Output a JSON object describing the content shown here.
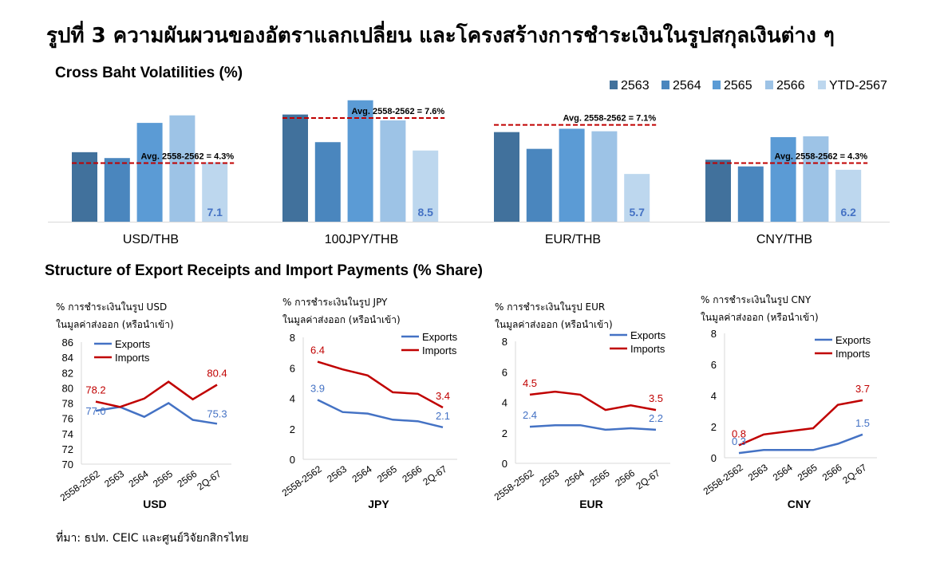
{
  "page_title": "รูปที่ 3 ความผันผวนของอัตราแลกเปลี่ยน และโครงสร้างการชำระเงินในรูปสกุลเงินต่าง ๆ",
  "volatility_title": "Cross Baht Volatilities (%)",
  "share_title": "Structure of Export Receipts and Import Payments (% Share)",
  "source": "ที่มา: ธปท. CEIC และศูนย์วิจัยกสิกรไทย",
  "colors": {
    "s2563": "#41719C",
    "s2564": "#4A86BE",
    "s2565": "#5B9BD5",
    "s2566": "#9DC3E6",
    "sYTD": "#BDD7EE",
    "avg_line": "#C00000",
    "exports": "#4472C4",
    "imports": "#C00000",
    "ytd_label": "#4472C4"
  },
  "chart_data": [
    {
      "type": "bar",
      "title": "Cross Baht Volatilities (%)",
      "categories": [
        "USD/THB",
        "100JPY/THB",
        "EUR/THB",
        "CNY/THB"
      ],
      "series": [
        {
          "name": "2563",
          "values": [
            8.3,
            12.8,
            10.7,
            7.4
          ]
        },
        {
          "name": "2564",
          "values": [
            7.6,
            9.5,
            8.7,
            6.6
          ]
        },
        {
          "name": "2565",
          "values": [
            11.8,
            14.5,
            11.1,
            10.1
          ]
        },
        {
          "name": "2566",
          "values": [
            12.7,
            12.1,
            10.8,
            10.2
          ]
        },
        {
          "name": "YTD-2567",
          "values": [
            7.1,
            8.5,
            5.7,
            6.2
          ]
        }
      ],
      "ytd_labels": [
        "7.1",
        "8.5",
        "5.7",
        "6.2"
      ],
      "averages": [
        {
          "value": 4.3,
          "label": "Avg. 2558-2562 = 4.3%"
        },
        {
          "value": 7.6,
          "label": "Avg. 2558-2562 = 7.6%"
        },
        {
          "value": 7.1,
          "label": "Avg. 2558-2562 = 7.1%"
        },
        {
          "value": 4.3,
          "label": "Avg. 2558-2562 = 4.3%"
        }
      ],
      "legend_position": "top-right",
      "grid": false
    },
    {
      "type": "line",
      "currency": "USD",
      "title": "USD",
      "ylabel_lines": [
        "% การชำระเงินในรูป USD",
        "ในมูลค่าส่งออก (หรือนำเข้า)"
      ],
      "x": [
        "2558-2562",
        "2563",
        "2564",
        "2565",
        "2566",
        "2Q-67"
      ],
      "series": [
        {
          "name": "Exports",
          "values": [
            77.0,
            77.5,
            76.2,
            78.0,
            75.8,
            75.3
          ]
        },
        {
          "name": "Imports",
          "values": [
            78.2,
            77.5,
            78.6,
            80.8,
            78.5,
            80.4
          ]
        }
      ],
      "ylim": [
        70,
        86
      ],
      "yticks": [
        70,
        72,
        74,
        76,
        78,
        80,
        82,
        84,
        86
      ],
      "labels": {
        "exports_first": "77.0",
        "exports_last": "75.3",
        "imports_first": "78.2",
        "imports_last": "80.4"
      }
    },
    {
      "type": "line",
      "currency": "JPY",
      "title": "JPY",
      "ylabel_lines": [
        "% การชำระเงินในรูป JPY",
        "ในมูลค่าส่งออก (หรือนำเข้า)"
      ],
      "x": [
        "2558-2562",
        "2563",
        "2564",
        "2565",
        "2566",
        "2Q-67"
      ],
      "series": [
        {
          "name": "Exports",
          "values": [
            3.9,
            3.1,
            3.0,
            2.6,
            2.5,
            2.1
          ]
        },
        {
          "name": "Imports",
          "values": [
            6.4,
            5.9,
            5.5,
            4.4,
            4.3,
            3.4
          ]
        }
      ],
      "ylim": [
        0,
        8
      ],
      "yticks": [
        0,
        2,
        4,
        6,
        8
      ],
      "labels": {
        "exports_first": "3.9",
        "exports_last": "2.1",
        "imports_first": "6.4",
        "imports_last": "3.4"
      }
    },
    {
      "type": "line",
      "currency": "EUR",
      "title": "EUR",
      "ylabel_lines": [
        "% การชำระเงินในรูป EUR",
        "ในมูลค่าส่งออก (หรือนำเข้า)"
      ],
      "x": [
        "2558-2562",
        "2563",
        "2564",
        "2565",
        "2566",
        "2Q-67"
      ],
      "series": [
        {
          "name": "Exports",
          "values": [
            2.4,
            2.5,
            2.5,
            2.2,
            2.3,
            2.2
          ]
        },
        {
          "name": "Imports",
          "values": [
            4.5,
            4.7,
            4.5,
            3.5,
            3.8,
            3.5
          ]
        }
      ],
      "ylim": [
        0,
        8
      ],
      "yticks": [
        0,
        2,
        4,
        6,
        8
      ],
      "labels": {
        "exports_first": "2.4",
        "exports_last": "2.2",
        "imports_first": "4.5",
        "imports_last": "3.5"
      }
    },
    {
      "type": "line",
      "currency": "CNY",
      "title": "CNY",
      "ylabel_lines": [
        "% การชำระเงินในรูป CNY",
        "ในมูลค่าส่งออก (หรือนำเข้า)"
      ],
      "x": [
        "2558-2562",
        "2563",
        "2564",
        "2565",
        "2566",
        "2Q-67"
      ],
      "series": [
        {
          "name": "Exports",
          "values": [
            0.3,
            0.5,
            0.5,
            0.5,
            0.9,
            1.5
          ]
        },
        {
          "name": "Imports",
          "values": [
            0.8,
            1.5,
            1.7,
            1.9,
            3.4,
            3.7
          ]
        }
      ],
      "ylim": [
        0,
        8
      ],
      "yticks": [
        0,
        2,
        4,
        6,
        8
      ],
      "labels": {
        "exports_first": "0.3",
        "exports_last": "1.5",
        "imports_first": "0.8",
        "imports_last": "3.7"
      }
    }
  ]
}
